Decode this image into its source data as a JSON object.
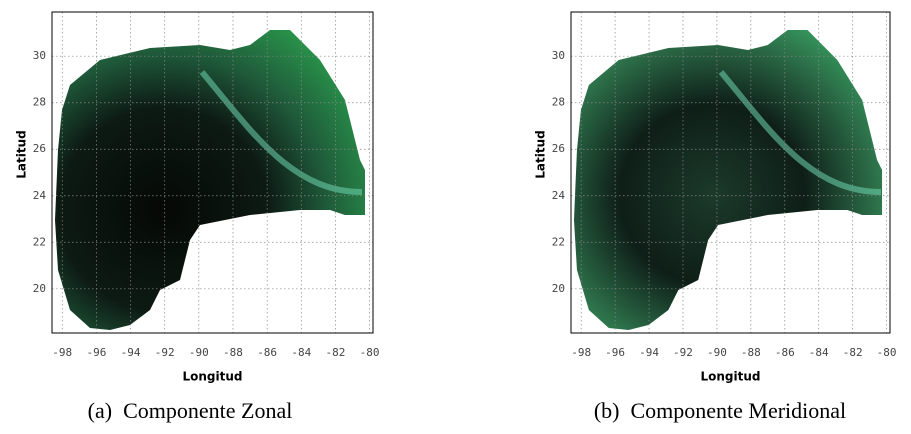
{
  "figures": [
    {
      "xlabel": "Longitud",
      "ylabel": "Latitud",
      "xlim": [
        -98.6,
        -79.8
      ],
      "ylim": [
        18.1,
        31.9
      ],
      "xticks": [
        -98,
        -96,
        -94,
        -92,
        -90,
        -88,
        -86,
        -84,
        -82,
        -80
      ],
      "yticks": [
        20,
        22,
        24,
        26,
        28,
        30
      ],
      "caption": "(a)  Componente Zonal"
    },
    {
      "xlabel": "Longitud",
      "ylabel": "Latitud",
      "xlim": [
        -98.6,
        -79.8
      ],
      "ylim": [
        18.1,
        31.9
      ],
      "xticks": [
        -98,
        -96,
        -94,
        -92,
        -90,
        -88,
        -86,
        -84,
        -82,
        -80
      ],
      "yticks": [
        20,
        22,
        24,
        26,
        28,
        30
      ],
      "caption": "(b)  Componente Meridional"
    }
  ]
}
